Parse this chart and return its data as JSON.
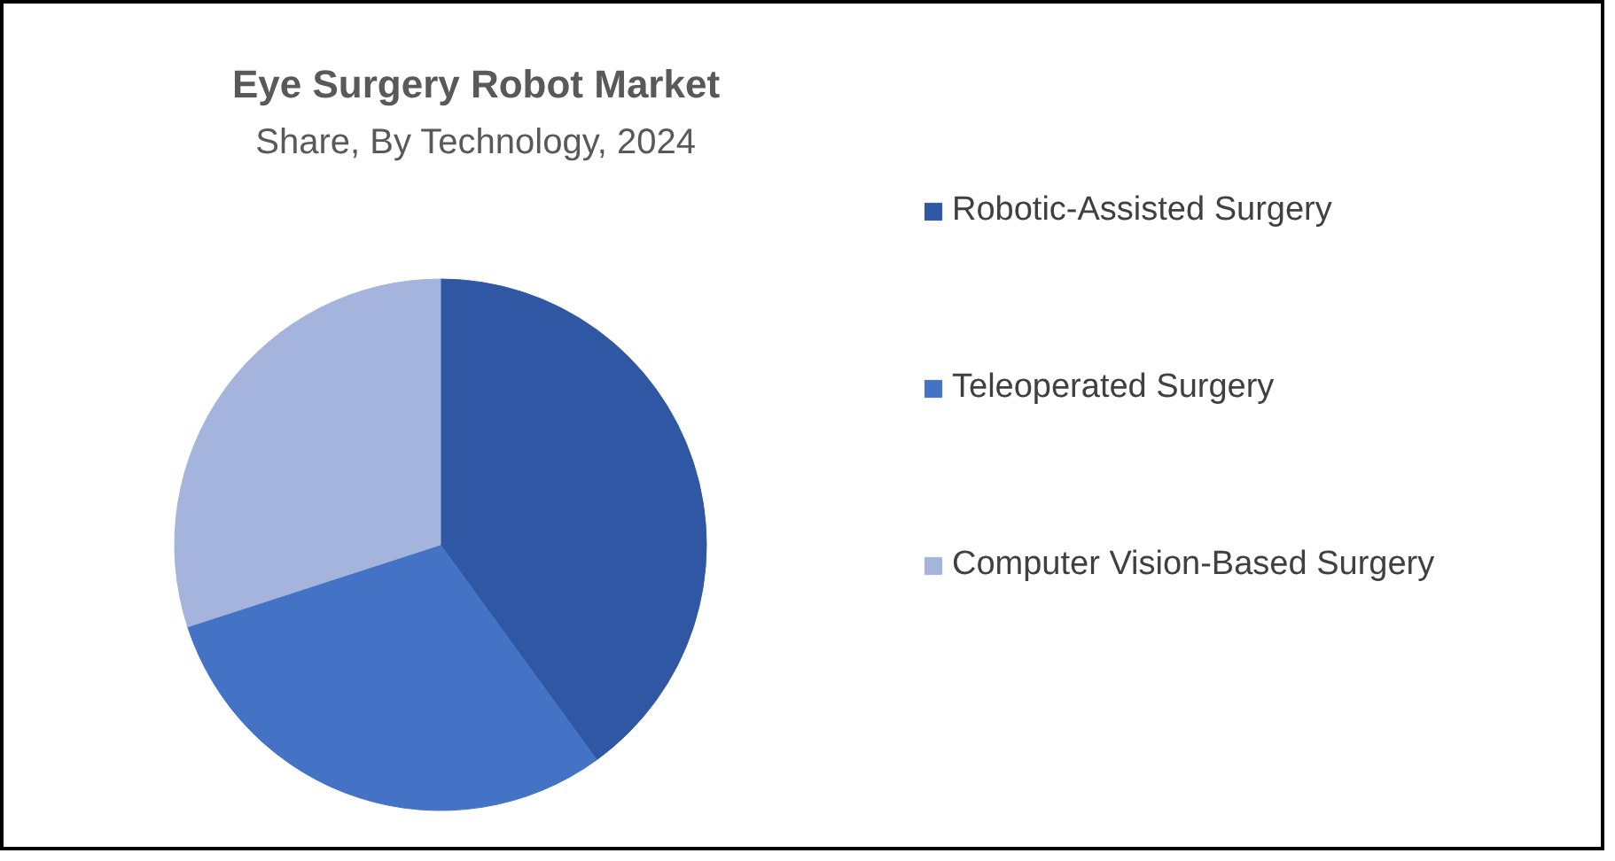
{
  "chart_data": {
    "type": "pie",
    "title": "Eye Surgery Robot Market",
    "subtitle": "Share, By Technology, 2024",
    "categories": [
      "Robotic-Assisted Surgery",
      "Teleoperated Surgery",
      "Computer Vision-Based Surgery"
    ],
    "values": [
      40,
      30,
      30
    ],
    "colors": [
      "#3057a4",
      "#4472c4",
      "#a5b4dc"
    ],
    "legend": "right"
  }
}
